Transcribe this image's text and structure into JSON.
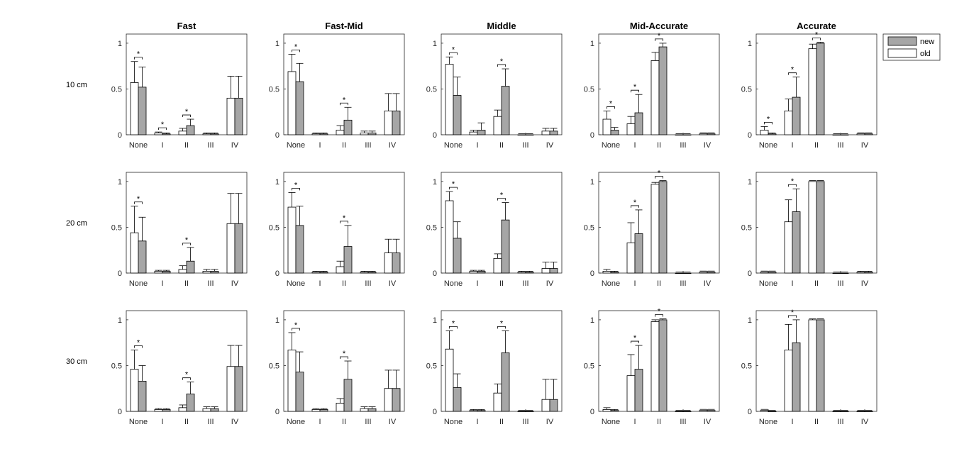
{
  "colors": {
    "new": "#a6a6a6",
    "old": "#ffffff",
    "axis": "#262626"
  },
  "chart_data": {
    "type": "bar",
    "panel_titles": [
      "Fast",
      "Fast-Mid",
      "Middle",
      "Mid-Accurate",
      "Accurate"
    ],
    "row_labels": [
      "10 cm",
      "20 cm",
      "30 cm"
    ],
    "categories": [
      "None",
      "I",
      "II",
      "III",
      "IV"
    ],
    "yticks": [
      0,
      0.5,
      1
    ],
    "ylim": [
      0,
      1.1
    ],
    "legend": {
      "position": "top-right",
      "entries": [
        "new",
        "old"
      ]
    },
    "panels": [
      [
        {
          "old": [
            0.57,
            0.02,
            0.04,
            0.01,
            0.4
          ],
          "new": [
            0.52,
            0.01,
            0.1,
            0.01,
            0.4
          ],
          "old_err": [
            0.23,
            0.01,
            0.03,
            0.01,
            0.24
          ],
          "new_err": [
            0.22,
            0.01,
            0.07,
            0.01,
            0.24
          ],
          "sig": [
            0,
            1,
            2
          ]
        },
        {
          "old": [
            0.69,
            0.01,
            0.05,
            0.02,
            0.26
          ],
          "new": [
            0.58,
            0.01,
            0.16,
            0.02,
            0.26
          ],
          "old_err": [
            0.19,
            0.01,
            0.05,
            0.02,
            0.19
          ],
          "new_err": [
            0.2,
            0.01,
            0.14,
            0.02,
            0.19
          ],
          "sig": [
            0,
            2
          ]
        },
        {
          "old": [
            0.77,
            0.03,
            0.2,
            0.0,
            0.04
          ],
          "new": [
            0.43,
            0.05,
            0.53,
            0.0,
            0.04
          ],
          "old_err": [
            0.08,
            0.02,
            0.07,
            0.0,
            0.03
          ],
          "new_err": [
            0.2,
            0.08,
            0.19,
            0.0,
            0.03
          ],
          "sig": [
            0,
            2
          ]
        },
        {
          "old": [
            0.17,
            0.12,
            0.81,
            0.0,
            0.01
          ],
          "new": [
            0.05,
            0.24,
            0.96,
            0.0,
            0.01
          ],
          "old_err": [
            0.09,
            0.08,
            0.09,
            0.0,
            0.0
          ],
          "new_err": [
            0.03,
            0.2,
            0.04,
            0.0,
            0.0
          ],
          "sig": [
            0,
            1,
            2
          ]
        },
        {
          "old": [
            0.05,
            0.26,
            0.94,
            0.0,
            0.01
          ],
          "new": [
            0.01,
            0.41,
            1.0,
            0.0,
            0.01
          ],
          "old_err": [
            0.04,
            0.13,
            0.05,
            0.0,
            0.0
          ],
          "new_err": [
            0.01,
            0.22,
            0.01,
            0.0,
            0.0
          ],
          "sig": [
            0,
            1,
            2
          ]
        }
      ],
      [
        {
          "old": [
            0.44,
            0.02,
            0.04,
            0.02,
            0.54
          ],
          "new": [
            0.35,
            0.02,
            0.13,
            0.02,
            0.54
          ],
          "old_err": [
            0.29,
            0.01,
            0.04,
            0.02,
            0.33
          ],
          "new_err": [
            0.26,
            0.01,
            0.15,
            0.02,
            0.33
          ],
          "sig": [
            0,
            2
          ]
        },
        {
          "old": [
            0.72,
            0.01,
            0.07,
            0.01,
            0.22
          ],
          "new": [
            0.52,
            0.01,
            0.29,
            0.01,
            0.22
          ],
          "old_err": [
            0.16,
            0.01,
            0.06,
            0.01,
            0.15
          ],
          "new_err": [
            0.21,
            0.01,
            0.23,
            0.01,
            0.15
          ],
          "sig": [
            0,
            2
          ]
        },
        {
          "old": [
            0.79,
            0.02,
            0.16,
            0.01,
            0.05
          ],
          "new": [
            0.38,
            0.02,
            0.58,
            0.01,
            0.05
          ],
          "old_err": [
            0.1,
            0.01,
            0.05,
            0.01,
            0.07
          ],
          "new_err": [
            0.18,
            0.01,
            0.19,
            0.01,
            0.07
          ],
          "sig": [
            0,
            2
          ]
        },
        {
          "old": [
            0.02,
            0.33,
            0.97,
            0.0,
            0.01
          ],
          "new": [
            0.01,
            0.43,
            1.0,
            0.0,
            0.01
          ],
          "old_err": [
            0.02,
            0.22,
            0.02,
            0.0,
            0.0
          ],
          "new_err": [
            0.01,
            0.26,
            0.01,
            0.0,
            0.0
          ],
          "sig": [
            1,
            2
          ]
        },
        {
          "old": [
            0.01,
            0.56,
            1.0,
            0.0,
            0.01
          ],
          "new": [
            0.01,
            0.67,
            1.0,
            0.0,
            0.01
          ],
          "old_err": [
            0.0,
            0.24,
            0.0,
            0.0,
            0.01
          ],
          "new_err": [
            0.0,
            0.25,
            0.0,
            0.0,
            0.01
          ],
          "sig": [
            1
          ]
        }
      ],
      [
        {
          "old": [
            0.46,
            0.02,
            0.04,
            0.03,
            0.49
          ],
          "new": [
            0.33,
            0.02,
            0.19,
            0.03,
            0.49
          ],
          "old_err": [
            0.21,
            0.01,
            0.03,
            0.02,
            0.23
          ],
          "new_err": [
            0.17,
            0.01,
            0.13,
            0.02,
            0.23
          ],
          "sig": [
            0,
            2
          ]
        },
        {
          "old": [
            0.67,
            0.02,
            0.09,
            0.03,
            0.25
          ],
          "new": [
            0.43,
            0.02,
            0.35,
            0.03,
            0.25
          ],
          "old_err": [
            0.19,
            0.01,
            0.05,
            0.02,
            0.2
          ],
          "new_err": [
            0.22,
            0.01,
            0.2,
            0.02,
            0.2
          ],
          "sig": [
            0,
            2
          ]
        },
        {
          "old": [
            0.68,
            0.01,
            0.2,
            0.0,
            0.13
          ],
          "new": [
            0.26,
            0.01,
            0.64,
            0.0,
            0.13
          ],
          "old_err": [
            0.2,
            0.01,
            0.1,
            0.0,
            0.22
          ],
          "new_err": [
            0.15,
            0.01,
            0.24,
            0.0,
            0.22
          ],
          "sig": [
            0,
            2
          ]
        },
        {
          "old": [
            0.02,
            0.39,
            0.98,
            0.0,
            0.01
          ],
          "new": [
            0.01,
            0.46,
            1.0,
            0.0,
            0.01
          ],
          "old_err": [
            0.02,
            0.23,
            0.02,
            0.0,
            0.0
          ],
          "new_err": [
            0.01,
            0.26,
            0.01,
            0.0,
            0.0
          ],
          "sig": [
            1,
            2
          ]
        },
        {
          "old": [
            0.01,
            0.67,
            1.0,
            0.0,
            0.0
          ],
          "new": [
            0.0,
            0.75,
            1.0,
            0.0,
            0.0
          ],
          "old_err": [
            0.0,
            0.28,
            0.01,
            0.0,
            0.0
          ],
          "new_err": [
            0.0,
            0.25,
            0.0,
            0.0,
            0.0
          ],
          "sig": [
            1
          ]
        }
      ]
    ]
  }
}
